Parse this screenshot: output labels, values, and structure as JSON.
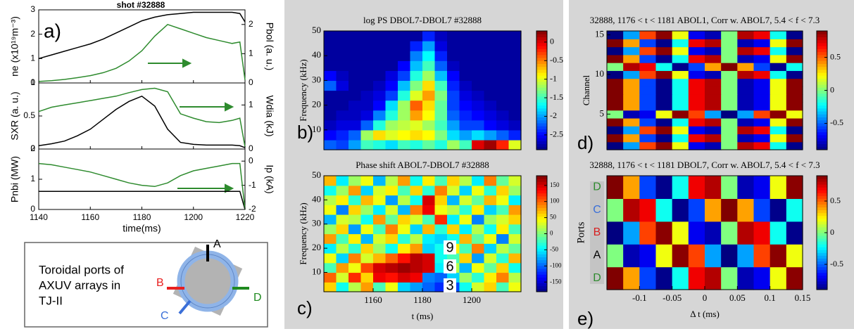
{
  "chart_data": [
    {
      "type": "line",
      "label": "a)",
      "title": "shot #32888",
      "xlabel": "time(ms)",
      "xlim": [
        1140,
        1220
      ],
      "xticks": [
        1140,
        1160,
        1180,
        1200,
        1220
      ],
      "x": [
        1140,
        1145,
        1150,
        1155,
        1160,
        1165,
        1170,
        1175,
        1180,
        1185,
        1190,
        1195,
        1200,
        1205,
        1210,
        1215,
        1218,
        1220
      ],
      "panels": [
        {
          "ylabel": "ne (x10¹⁹m⁻³)",
          "y2label": "Pbol (a. u.)",
          "ylim": [
            0,
            3
          ],
          "yticks": [
            0,
            1,
            2,
            3
          ],
          "y2lim": [
            0,
            2.5
          ],
          "y2ticks": [
            0,
            1,
            2
          ],
          "series": [
            {
              "color": "#000000",
              "values": [
                1.0,
                1.15,
                1.3,
                1.45,
                1.6,
                1.8,
                2.05,
                2.3,
                2.55,
                2.7,
                2.8,
                2.85,
                2.9,
                2.9,
                2.9,
                2.9,
                2.85,
                2.5
              ]
            },
            {
              "color": "#2e8b2e",
              "axis": "y2",
              "values": [
                0.05,
                0.08,
                0.12,
                0.18,
                0.25,
                0.35,
                0.5,
                0.75,
                1.1,
                1.6,
                2.0,
                1.85,
                1.7,
                1.55,
                1.45,
                1.35,
                1.4,
                0.1
              ]
            }
          ]
        },
        {
          "ylabel": "SXR (a. u.)",
          "y2label": "Wdia (kJ)",
          "ylim": [
            0,
            1
          ],
          "yticks": [
            0,
            0.5,
            1
          ],
          "y2lim": [
            0,
            1.5
          ],
          "y2ticks": [
            0,
            1
          ],
          "series": [
            {
              "color": "#000000",
              "values": [
                0.05,
                0.08,
                0.12,
                0.2,
                0.3,
                0.45,
                0.6,
                0.72,
                0.8,
                0.65,
                0.3,
                0.1,
                0.07,
                0.06,
                0.06,
                0.06,
                0.05,
                0.02
              ]
            },
            {
              "color": "#2e8b2e",
              "axis": "y2",
              "values": [
                0.85,
                0.95,
                1.0,
                1.05,
                1.1,
                1.15,
                1.2,
                1.28,
                1.35,
                1.38,
                1.3,
                0.8,
                0.7,
                0.62,
                0.6,
                0.65,
                0.7,
                0.05
              ]
            }
          ]
        },
        {
          "ylabel": "Pnbi (MW)",
          "y2label": "Ip (kA)",
          "ylim": [
            0,
            2
          ],
          "yticks": [
            0,
            1,
            2
          ],
          "y2lim": [
            -2,
            0.5
          ],
          "y2ticks": [
            -2,
            -1,
            0
          ],
          "series": [
            {
              "color": "#000000",
              "values": [
                0.6,
                0.6,
                0.6,
                0.6,
                0.6,
                0.6,
                0.6,
                0.6,
                0.6,
                0.6,
                0.6,
                0.6,
                0.6,
                0.6,
                0.6,
                0.6,
                0.6,
                0.0
              ]
            },
            {
              "color": "#2e8b2e",
              "axis": "y2",
              "values": [
                -0.1,
                -0.15,
                -0.25,
                -0.35,
                -0.45,
                -0.6,
                -0.75,
                -0.9,
                -1.0,
                -1.05,
                -0.9,
                -0.6,
                -0.4,
                -0.3,
                -0.2,
                -0.1,
                -0.1,
                -2.0
              ]
            }
          ]
        }
      ]
    },
    {
      "type": "heatmap",
      "label": "b)",
      "title": "log PS DBOL7-DBOL7  #32888",
      "ylabel": "Frequency (kHz)",
      "xlim": [
        1140,
        1220
      ],
      "ylim": [
        2,
        50
      ],
      "yticks": [
        10,
        20,
        30,
        40,
        50
      ],
      "zlim": [
        -2.9,
        0.3
      ],
      "cticks": [
        0,
        -0.5,
        -1,
        -1.5,
        -2,
        -2.5
      ],
      "z": [
        [
          -2.2,
          -2.3,
          -2.0,
          -1.5,
          -1.6,
          -1.8,
          -1.5,
          -1.6,
          -1.4,
          -1.6,
          -1.2,
          -1.5,
          0,
          0.2,
          -0.2,
          -1.0
        ],
        [
          -2.5,
          -2.4,
          -2.2,
          -1.2,
          -0.8,
          -1.0,
          -0.9,
          -0.8,
          -0.9,
          -1.3,
          -1.8,
          -2.0,
          -1.8,
          -2.0,
          -2.2,
          -2.4
        ],
        [
          -2.7,
          -2.6,
          -2.6,
          -2.2,
          -1.6,
          -1.2,
          -1.1,
          -1.0,
          -1.2,
          -1.5,
          -2.0,
          -2.3,
          -2.3,
          -2.5,
          -2.6,
          -2.7
        ],
        [
          -2.8,
          -2.7,
          -2.7,
          -2.6,
          -2.1,
          -1.6,
          -1.2,
          -0.6,
          -0.9,
          -1.4,
          -2.2,
          -2.4,
          -2.5,
          -2.6,
          -2.7,
          -2.8
        ],
        [
          -2.8,
          -2.8,
          -2.7,
          -2.7,
          -2.5,
          -1.8,
          -1.2,
          -0.4,
          -0.8,
          -1.4,
          -2.3,
          -2.5,
          -2.6,
          -2.7,
          -2.8,
          -2.8
        ],
        [
          -2.8,
          -2.8,
          -2.8,
          -2.7,
          -2.6,
          -2.3,
          -1.6,
          -1.0,
          -0.6,
          -1.3,
          -2.3,
          -2.6,
          -2.7,
          -2.8,
          -2.8,
          -2.8
        ],
        [
          -2.2,
          -2.6,
          -2.8,
          -2.8,
          -2.7,
          -2.5,
          -1.9,
          -1.3,
          -0.8,
          -1.5,
          -2.4,
          -2.7,
          -2.8,
          -2.8,
          -2.8,
          -2.8
        ],
        [
          -2.5,
          -2.7,
          -2.8,
          -2.8,
          -2.8,
          -2.6,
          -2.3,
          -1.6,
          -1.2,
          -1.9,
          -2.5,
          -2.8,
          -2.8,
          -2.8,
          -2.8,
          -2.8
        ],
        [
          -2.8,
          -2.8,
          -2.8,
          -2.8,
          -2.8,
          -2.8,
          -2.5,
          -1.9,
          -1.5,
          -2.2,
          -2.7,
          -2.8,
          -2.8,
          -2.8,
          -2.8,
          -2.8
        ],
        [
          -2.8,
          -2.8,
          -2.8,
          -2.8,
          -2.8,
          -2.8,
          -2.8,
          -2.1,
          -1.7,
          -2.4,
          -2.8,
          -2.8,
          -2.8,
          -2.8,
          -2.8,
          -2.8
        ],
        [
          -2.8,
          -2.8,
          -2.8,
          -2.8,
          -2.8,
          -2.8,
          -2.8,
          -2.4,
          -2.0,
          -2.6,
          -2.8,
          -2.8,
          -2.8,
          -2.8,
          -2.8,
          -2.8
        ],
        [
          -2.8,
          -2.8,
          -2.8,
          -2.8,
          -2.8,
          -2.8,
          -2.8,
          -2.8,
          -2.4,
          -2.7,
          -2.8,
          -2.8,
          -2.8,
          -2.8,
          -2.8,
          -2.8
        ]
      ]
    },
    {
      "type": "heatmap",
      "label": "c)",
      "title": "Phase shift ABOL7-DBOL7  #32888",
      "ylabel": "Frequency (kHz)",
      "xlabel": "t (ms)",
      "xlim": [
        1140,
        1220
      ],
      "xticks": [
        1160,
        1180,
        1200
      ],
      "ylim": [
        2,
        50
      ],
      "yticks": [
        10,
        20,
        30,
        40,
        50
      ],
      "zlim": [
        -180,
        180
      ],
      "cticks": [
        150,
        100,
        50,
        0,
        -50,
        -100,
        -150
      ],
      "annotations": [
        "9",
        "6",
        "3"
      ],
      "z": [
        [
          60,
          -40,
          20,
          80,
          -20,
          40,
          -60,
          -80,
          -100,
          -120,
          -110,
          -40,
          30,
          60,
          -20,
          40
        ],
        [
          100,
          30,
          120,
          60,
          140,
          130,
          150,
          140,
          -90,
          -100,
          -60,
          10,
          -30,
          50,
          90,
          20
        ],
        [
          -20,
          80,
          40,
          110,
          150,
          160,
          170,
          160,
          150,
          -50,
          20,
          -70,
          40,
          -10,
          60,
          -40
        ],
        [
          40,
          -60,
          90,
          30,
          70,
          100,
          130,
          160,
          150,
          -40,
          -20,
          60,
          -80,
          30,
          -30,
          70
        ],
        [
          -50,
          20,
          -30,
          60,
          10,
          -40,
          50,
          80,
          -60,
          -40,
          50,
          -20,
          90,
          -60,
          20,
          -10
        ],
        [
          80,
          -20,
          50,
          -70,
          30,
          60,
          -30,
          20,
          -50,
          -60,
          -40,
          70,
          -10,
          40,
          -90,
          30
        ],
        [
          10,
          60,
          -80,
          40,
          -20,
          90,
          40,
          -60,
          70,
          -30,
          60,
          -50,
          20,
          -40,
          50,
          -20
        ],
        [
          -70,
          30,
          20,
          -40,
          80,
          -10,
          60,
          30,
          -20,
          120,
          -50,
          40,
          -90,
          10,
          30,
          60
        ],
        [
          40,
          -90,
          60,
          10,
          -50,
          30,
          -70,
          90,
          140,
          40,
          20,
          -30,
          50,
          -60,
          -20,
          80
        ],
        [
          20,
          50,
          -30,
          70,
          40,
          -80,
          20,
          -40,
          150,
          60,
          -70,
          30,
          -10,
          70,
          40,
          -50
        ],
        [
          -40,
          10,
          80,
          -60,
          30,
          50,
          -20,
          60,
          -30,
          90,
          30,
          -60,
          40,
          -30,
          60,
          10
        ],
        [
          70,
          -50,
          10,
          40,
          -70,
          20,
          80,
          -40,
          50,
          -20,
          60,
          20,
          -50,
          90,
          -10,
          30
        ]
      ]
    },
    {
      "type": "heatmap",
      "label": "d)",
      "title": "32888, 1176 < t < 1181 ABOL1, Corr w. ABOL7, 5.4 < f < 7.3",
      "ylabel": "Channel",
      "xlim": [
        -0.15,
        0.15
      ],
      "ylim": [
        0.5,
        15.5
      ],
      "yticks": [
        5,
        10,
        15
      ],
      "zlim": [
        -0.9,
        0.9
      ],
      "cticks": [
        0.5,
        0,
        -0.5
      ],
      "z": [
        [
          -0.9,
          -0.39,
          0.56,
          0.88,
          0.2,
          -0.7,
          -0.81,
          0,
          0.81,
          0.7,
          -0.2,
          -0.88
        ],
        [
          0.9,
          0.39,
          -0.56,
          -0.88,
          -0.2,
          0.7,
          0.81,
          0,
          -0.81,
          -0.7,
          0.2,
          0.88
        ],
        [
          -0.9,
          -0.39,
          0.56,
          0.88,
          0.2,
          -0.7,
          -0.81,
          0,
          0.81,
          0.7,
          -0.2,
          -0.88
        ],
        [
          0.9,
          0.39,
          -0.56,
          -0.88,
          -0.2,
          0.7,
          0.81,
          0,
          -0.81,
          -0.7,
          0.2,
          0.88
        ],
        [
          0,
          -0.81,
          -0.7,
          0.2,
          0.88,
          0.56,
          -0.39,
          -0.9,
          -0.39,
          0.56,
          0.88,
          0.2
        ],
        [
          0.9,
          0.39,
          -0.56,
          -0.88,
          -0.2,
          0.7,
          0.81,
          0,
          -0.81,
          -0.7,
          0.2,
          0.88
        ],
        [
          0.9,
          0.39,
          -0.56,
          -0.88,
          -0.2,
          0.7,
          0.81,
          0,
          -0.81,
          -0.7,
          0.2,
          0.88
        ],
        [
          0.9,
          0.39,
          -0.56,
          -0.88,
          -0.2,
          0.7,
          0.81,
          0,
          -0.81,
          -0.7,
          0.2,
          0.88
        ],
        [
          0.9,
          0.39,
          -0.56,
          -0.88,
          -0.2,
          0.7,
          0.81,
          0,
          -0.81,
          -0.7,
          0.2,
          0.88
        ],
        [
          -0.9,
          -0.39,
          0.56,
          0.88,
          0.2,
          -0.7,
          -0.81,
          0,
          0.81,
          0.7,
          -0.2,
          -0.88
        ],
        [
          0,
          0.81,
          0.7,
          -0.2,
          -0.88,
          -0.56,
          0.39,
          0.9,
          0.39,
          -0.56,
          -0.88,
          -0.2
        ],
        [
          0.9,
          0.39,
          -0.56,
          -0.88,
          -0.2,
          0.7,
          0.81,
          0,
          -0.81,
          -0.7,
          0.2,
          0.88
        ],
        [
          -0.9,
          -0.39,
          0.56,
          0.88,
          0.2,
          -0.7,
          -0.81,
          0,
          0.81,
          0.7,
          -0.2,
          -0.88
        ],
        [
          0.9,
          0.39,
          -0.56,
          -0.88,
          -0.2,
          0.7,
          0.81,
          0,
          -0.81,
          -0.7,
          0.2,
          0.88
        ],
        [
          -0.9,
          -0.39,
          0.56,
          0.88,
          0.2,
          -0.7,
          -0.81,
          0,
          0.81,
          0.7,
          -0.2,
          -0.88
        ]
      ]
    },
    {
      "type": "heatmap",
      "label": "e)",
      "title": "32888, 1176 < t < 1181 DBOL7, Corr w. ABOL7, 5.4 < f < 7.3",
      "ylabel": "Ports",
      "xlabel": "Δ t (ms)",
      "xlim": [
        -0.15,
        0.15
      ],
      "xticks": [
        -0.1,
        -0.05,
        0,
        0.05,
        0.1,
        0.15
      ],
      "categories": [
        "D",
        "A",
        "B",
        "C",
        "D"
      ],
      "category_colors": [
        "#2e8b2e",
        "#000000",
        "#d62020",
        "#3a6fd8",
        "#2e8b2e"
      ],
      "zlim": [
        -0.9,
        0.9
      ],
      "cticks": [
        0.5,
        0,
        -0.5
      ],
      "z": [
        [
          0.9,
          0.39,
          -0.56,
          -0.88,
          -0.2,
          0.7,
          0.81,
          0,
          -0.81,
          -0.7,
          0.2,
          0.88
        ],
        [
          0,
          -0.81,
          -0.7,
          0.2,
          0.88,
          0.56,
          -0.39,
          -0.9,
          -0.39,
          0.56,
          0.88,
          0.2
        ],
        [
          -0.9,
          -0.39,
          0.56,
          0.88,
          0.2,
          -0.7,
          -0.81,
          0,
          0.81,
          0.7,
          -0.2,
          -0.88
        ],
        [
          0,
          0.81,
          0.7,
          -0.2,
          -0.88,
          -0.56,
          0.39,
          0.9,
          0.39,
          -0.56,
          -0.88,
          -0.2
        ],
        [
          0.9,
          0.39,
          -0.56,
          -0.88,
          -0.2,
          0.7,
          0.81,
          0,
          -0.81,
          -0.7,
          0.2,
          0.88
        ]
      ]
    }
  ],
  "inset": {
    "text": [
      "Toroidal ports of",
      "AXUV arrays in",
      "TJ-II"
    ],
    "ports": [
      "A",
      "B",
      "C",
      "D"
    ]
  }
}
